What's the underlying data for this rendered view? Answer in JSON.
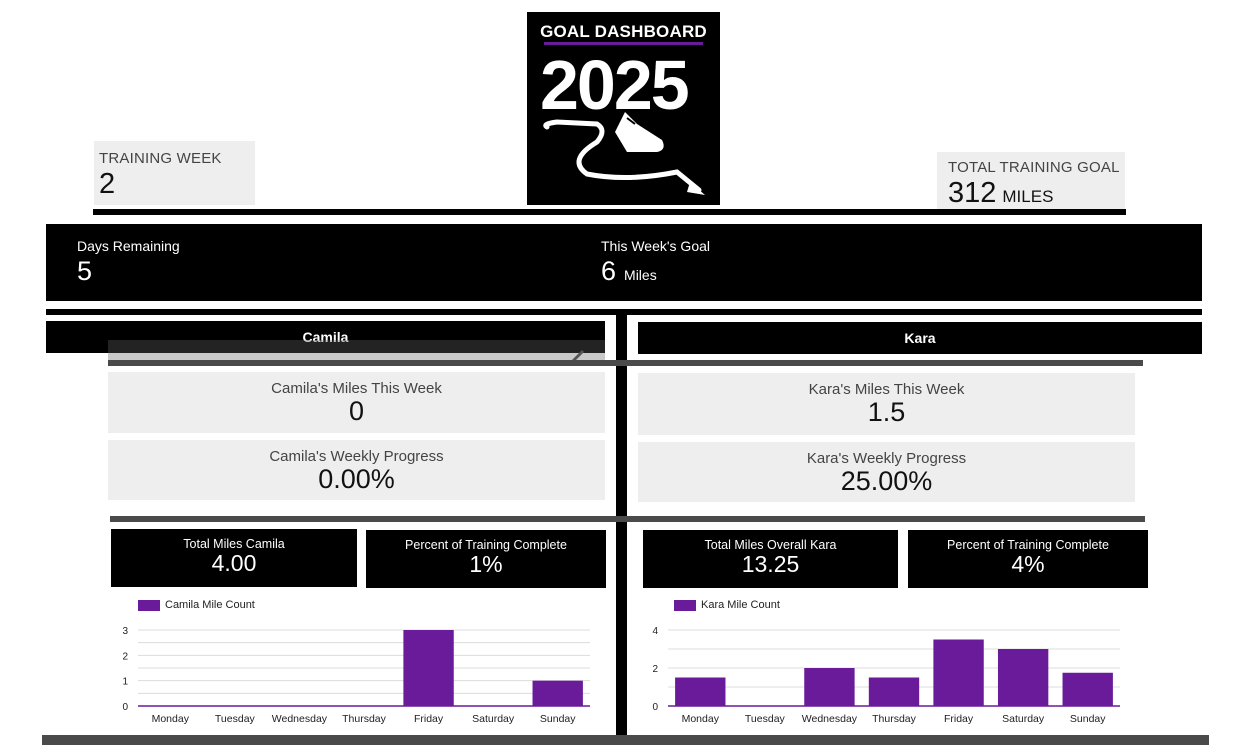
{
  "header": {
    "training_week": {
      "label": "TRAINING WEEK",
      "value": "2"
    },
    "total_goal": {
      "label": "TOTAL TRAINING GOAL",
      "value": "312",
      "unit": "MILES"
    },
    "logo": {
      "title": "GOAL DASHBOARD",
      "year": "2025"
    }
  },
  "banner": {
    "days_remaining": {
      "label": "Days Remaining",
      "value": "5"
    },
    "weekly_goal": {
      "label": "This Week's Goal",
      "value": "6",
      "unit": "Miles"
    }
  },
  "runners": {
    "camila": {
      "name": "Camila",
      "miles_week": {
        "label": "Camila's Miles This Week",
        "value": "0"
      },
      "progress": {
        "label": "Camila's Weekly Progress",
        "value": "0.00%"
      },
      "total": {
        "label": "Total Miles Camila",
        "value": "4.00"
      },
      "percent": {
        "label": "Percent of Training Complete",
        "value": "1%"
      }
    },
    "kara": {
      "name": "Kara",
      "miles_week": {
        "label": "Kara's Miles This Week",
        "value": "1.5"
      },
      "progress": {
        "label": "Kara's Weekly Progress",
        "value": "25.00%"
      },
      "total": {
        "label": "Total Miles Overall Kara",
        "value": "13.25"
      },
      "percent": {
        "label": "Percent of Training Complete",
        "value": "4%"
      }
    }
  },
  "colors": {
    "accent": "#6a1b9a",
    "dark": "#000000",
    "card": "#eeeeee"
  },
  "chart_data": [
    {
      "type": "bar",
      "categories": [
        "Monday",
        "Tuesday",
        "Wednesday",
        "Thursday",
        "Friday",
        "Saturday",
        "Sunday"
      ],
      "series": [
        {
          "name": "Camila Mile Count",
          "values": [
            0,
            0,
            0,
            0,
            3,
            0,
            1
          ]
        }
      ],
      "yticks": [
        "0",
        "1",
        "2",
        "3"
      ],
      "ylim": [
        0,
        3
      ],
      "grid": true,
      "legend": "top-left"
    },
    {
      "type": "bar",
      "categories": [
        "Monday",
        "Tuesday",
        "Wednesday",
        "Thursday",
        "Friday",
        "Saturday",
        "Sunday"
      ],
      "series": [
        {
          "name": "Kara Mile Count",
          "values": [
            1.5,
            0,
            2,
            1.5,
            3.5,
            3,
            1.75
          ]
        }
      ],
      "yticks": [
        "0",
        "2",
        "4"
      ],
      "ylim": [
        0,
        4
      ],
      "grid": true,
      "legend": "top-left"
    }
  ]
}
